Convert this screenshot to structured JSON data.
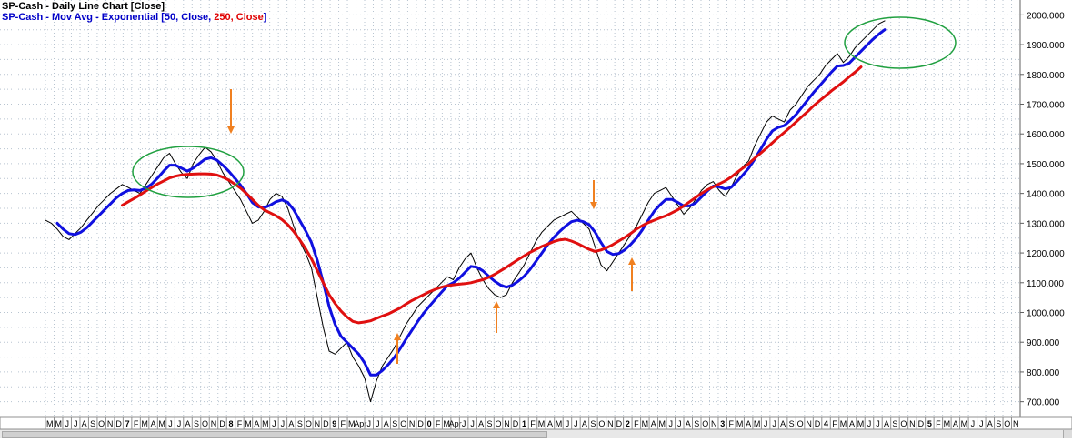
{
  "legend": {
    "line1": "SP-Cash - Daily Line Chart [Close]",
    "line2_prefix": "SP-Cash - Mov Avg - Exponential [",
    "line2_blue": "50, Close, ",
    "line2_red": "250, Close",
    "line2_suffix": "]"
  },
  "colors": {
    "price": "#000000",
    "ema50": "#1010e0",
    "ema250": "#e01010",
    "ellipse": "#20a040",
    "arrow": "#f08020",
    "grid": "#b8c4d0"
  },
  "chart_data": {
    "type": "line",
    "ylim": [
      650,
      2050
    ],
    "y_ticks": [
      "2000.000",
      "1900.000",
      "1800.000",
      "1700.000",
      "1600.000",
      "1500.000",
      "1400.000",
      "1300.000",
      "1200.000",
      "1100.000",
      "1000.000",
      "900.000",
      "800.000",
      "700.000"
    ],
    "y_tick_values": [
      2000,
      1900,
      1800,
      1700,
      1600,
      1500,
      1400,
      1300,
      1200,
      1100,
      1000,
      900,
      800,
      700
    ],
    "x_axis_labels": [
      "M",
      "M",
      "J",
      "J",
      "A",
      "S",
      "O",
      "N",
      "D",
      "7",
      "F",
      "M",
      "A",
      "M",
      "J",
      "J",
      "A",
      "S",
      "O",
      "N",
      "D",
      "8",
      "F",
      "M",
      "A",
      "M",
      "J",
      "J",
      "A",
      "S",
      "O",
      "N",
      "D",
      "9",
      "F",
      "M",
      "Apr",
      "J",
      "J",
      "A",
      "S",
      "O",
      "N",
      "D",
      "0",
      "F",
      "M",
      "Apr",
      "J",
      "J",
      "A",
      "S",
      "O",
      "N",
      "D",
      "1",
      "F",
      "M",
      "A",
      "M",
      "J",
      "J",
      "A",
      "S",
      "O",
      "N",
      "D",
      "2",
      "F",
      "M",
      "A",
      "M",
      "J",
      "J",
      "A",
      "S",
      "O",
      "N",
      "3",
      "F",
      "M",
      "A",
      "M",
      "J",
      "J",
      "A",
      "S",
      "O",
      "N",
      "D",
      "4",
      "F",
      "M",
      "A",
      "M",
      "J",
      "J",
      "A",
      "S",
      "O",
      "N",
      "D",
      "5",
      "F",
      "M",
      "A",
      "M",
      "J",
      "J",
      "A",
      "S",
      "O",
      "N"
    ],
    "x_axis_bold": [
      "7",
      "8",
      "9",
      "0",
      "1",
      "2",
      "3",
      "4",
      "5"
    ],
    "series": [
      {
        "name": "Close",
        "values": [
          1310,
          1300,
          1280,
          1255,
          1245,
          1265,
          1285,
          1310,
          1335,
          1360,
          1380,
          1400,
          1415,
          1430,
          1420,
          1410,
          1400,
          1430,
          1460,
          1490,
          1520,
          1535,
          1500,
          1470,
          1450,
          1500,
          1530,
          1555,
          1540,
          1510,
          1470,
          1440,
          1410,
          1380,
          1340,
          1300,
          1310,
          1340,
          1380,
          1400,
          1390,
          1350,
          1290,
          1240,
          1200,
          1150,
          1050,
          950,
          870,
          860,
          880,
          900,
          850,
          820,
          780,
          700,
          770,
          820,
          850,
          880,
          920,
          960,
          990,
          1020,
          1040,
          1060,
          1080,
          1100,
          1120,
          1110,
          1150,
          1180,
          1200,
          1150,
          1110,
          1080,
          1060,
          1050,
          1060,
          1100,
          1130,
          1160,
          1200,
          1240,
          1270,
          1290,
          1310,
          1320,
          1330,
          1340,
          1320,
          1300,
          1280,
          1220,
          1160,
          1140,
          1170,
          1200,
          1230,
          1260,
          1290,
          1330,
          1370,
          1400,
          1410,
          1420,
          1390,
          1360,
          1330,
          1350,
          1380,
          1410,
          1430,
          1440,
          1410,
          1390,
          1420,
          1460,
          1490,
          1510,
          1560,
          1600,
          1640,
          1660,
          1650,
          1640,
          1680,
          1700,
          1730,
          1760,
          1780,
          1800,
          1830,
          1850,
          1870,
          1840,
          1860,
          1890,
          1910,
          1930,
          1950,
          1970,
          1980
        ]
      },
      {
        "name": "50",
        "values": [
          null,
          null,
          1300,
          1280,
          1265,
          1262,
          1270,
          1285,
          1305,
          1325,
          1345,
          1365,
          1385,
          1400,
          1410,
          1412,
          1410,
          1418,
          1432,
          1452,
          1475,
          1495,
          1495,
          1485,
          1475,
          1485,
          1500,
          1515,
          1520,
          1512,
          1495,
          1475,
          1452,
          1428,
          1400,
          1370,
          1355,
          1352,
          1360,
          1372,
          1378,
          1370,
          1345,
          1310,
          1275,
          1235,
          1175,
          1100,
          1020,
          960,
          920,
          900,
          880,
          860,
          830,
          790,
          790,
          805,
          825,
          848,
          878,
          910,
          940,
          970,
          998,
          1022,
          1045,
          1068,
          1090,
          1100,
          1115,
          1135,
          1155,
          1152,
          1140,
          1122,
          1105,
          1092,
          1085,
          1092,
          1105,
          1122,
          1145,
          1172,
          1200,
          1228,
          1252,
          1272,
          1290,
          1305,
          1310,
          1305,
          1295,
          1270,
          1235,
          1205,
          1195,
          1198,
          1210,
          1228,
          1250,
          1278,
          1310,
          1340,
          1362,
          1380,
          1380,
          1370,
          1358,
          1358,
          1368,
          1388,
          1408,
          1425,
          1422,
          1415,
          1420,
          1440,
          1462,
          1485,
          1515,
          1548,
          1582,
          1610,
          1622,
          1628,
          1645,
          1665,
          1690,
          1715,
          1740,
          1762,
          1785,
          1808,
          1828,
          1830,
          1838,
          1858,
          1878,
          1898,
          1918,
          1935,
          1950
        ]
      },
      {
        "name": "250",
        "values": [
          null,
          null,
          null,
          null,
          null,
          null,
          null,
          null,
          null,
          null,
          null,
          null,
          null,
          1360,
          1372,
          1383,
          1395,
          1408,
          1420,
          1432,
          1442,
          1452,
          1458,
          1462,
          1464,
          1465,
          1466,
          1466,
          1465,
          1462,
          1455,
          1445,
          1432,
          1418,
          1400,
          1380,
          1360,
          1345,
          1335,
          1325,
          1312,
          1295,
          1272,
          1245,
          1215,
          1180,
          1140,
          1100,
          1060,
          1030,
          1005,
          985,
          970,
          965,
          968,
          972,
          980,
          988,
          995,
          1005,
          1015,
          1028,
          1040,
          1050,
          1060,
          1070,
          1078,
          1085,
          1090,
          1093,
          1095,
          1097,
          1100,
          1105,
          1110,
          1118,
          1128,
          1140,
          1152,
          1165,
          1178,
          1190,
          1202,
          1212,
          1222,
          1230,
          1238,
          1244,
          1246,
          1240,
          1232,
          1222,
          1212,
          1205,
          1210,
          1218,
          1228,
          1240,
          1252,
          1265,
          1280,
          1292,
          1302,
          1310,
          1318,
          1325,
          1335,
          1345,
          1358,
          1372,
          1386,
          1400,
          1412,
          1422,
          1432,
          1442,
          1455,
          1470,
          1485,
          1500,
          1518,
          1535,
          1552,
          1570,
          1588,
          1605,
          1622,
          1640,
          1658,
          1676,
          1695,
          1712,
          1728,
          1745,
          1760,
          1775,
          1792,
          1808,
          1825
        ]
      }
    ]
  }
}
